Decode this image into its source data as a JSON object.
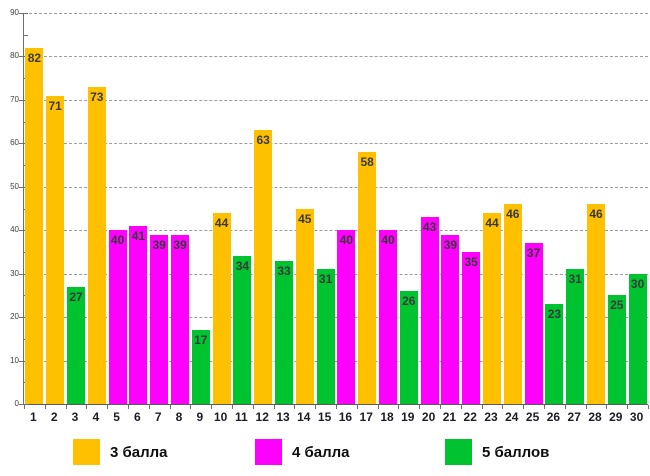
{
  "chart_data": {
    "type": "bar",
    "title": "",
    "xlabel": "",
    "ylabel": "",
    "ylim": [
      0,
      90
    ],
    "yticks": [
      0,
      10,
      20,
      30,
      40,
      50,
      60,
      70,
      80,
      90
    ],
    "grid": "horizontal-dashed",
    "legend_position": "bottom",
    "legend": [
      {
        "label": "3 балла",
        "color": "#FFC000"
      },
      {
        "label": "4 балла",
        "color": "#FF00FF"
      },
      {
        "label": "5 баллов",
        "color": "#00C330"
      }
    ],
    "bars": [
      {
        "label": "1",
        "value": 82,
        "series": "3 балла"
      },
      {
        "label": "2",
        "value": 71,
        "series": "3 балла"
      },
      {
        "label": "3",
        "value": 27,
        "series": "5 баллов"
      },
      {
        "label": "4",
        "value": 73,
        "series": "3 балла"
      },
      {
        "label": "5",
        "value": 40,
        "series": "4 балла"
      },
      {
        "label": "6",
        "value": 41,
        "series": "4 балла"
      },
      {
        "label": "7",
        "value": 39,
        "series": "4 балла"
      },
      {
        "label": "8",
        "value": 39,
        "series": "4 балла"
      },
      {
        "label": "9",
        "value": 17,
        "series": "5 баллов"
      },
      {
        "label": "10",
        "value": 44,
        "series": "3 балла"
      },
      {
        "label": "11",
        "value": 34,
        "series": "5 баллов"
      },
      {
        "label": "12",
        "value": 63,
        "series": "3 балла"
      },
      {
        "label": "13",
        "value": 33,
        "series": "5 баллов"
      },
      {
        "label": "14",
        "value": 45,
        "series": "3 балла"
      },
      {
        "label": "15",
        "value": 31,
        "series": "5 баллов"
      },
      {
        "label": "16",
        "value": 40,
        "series": "4 балла"
      },
      {
        "label": "17",
        "value": 58,
        "series": "3 балла"
      },
      {
        "label": "18",
        "value": 40,
        "series": "4 балла"
      },
      {
        "label": "19",
        "value": 26,
        "series": "5 баллов"
      },
      {
        "label": "20",
        "value": 43,
        "series": "4 балла"
      },
      {
        "label": "21",
        "value": 39,
        "series": "4 балла"
      },
      {
        "label": "22",
        "value": 35,
        "series": "4 балла"
      },
      {
        "label": "23",
        "value": 44,
        "series": "3 балла"
      },
      {
        "label": "24",
        "value": 46,
        "series": "3 балла"
      },
      {
        "label": "25",
        "value": 37,
        "series": "4 балла"
      },
      {
        "label": "26",
        "value": 23,
        "series": "5 баллов"
      },
      {
        "label": "27",
        "value": 31,
        "series": "5 баллов"
      },
      {
        "label": "28",
        "value": 46,
        "series": "3 балла"
      },
      {
        "label": "29",
        "value": 25,
        "series": "5 баллов"
      },
      {
        "label": "30",
        "value": 30,
        "series": "5 баллов"
      }
    ]
  },
  "colors": {
    "gridline": "#9c9c9c",
    "axis": "#6f6f6f",
    "bar_value_text": "#3a3a3a",
    "category_text": "#1c1c24"
  }
}
